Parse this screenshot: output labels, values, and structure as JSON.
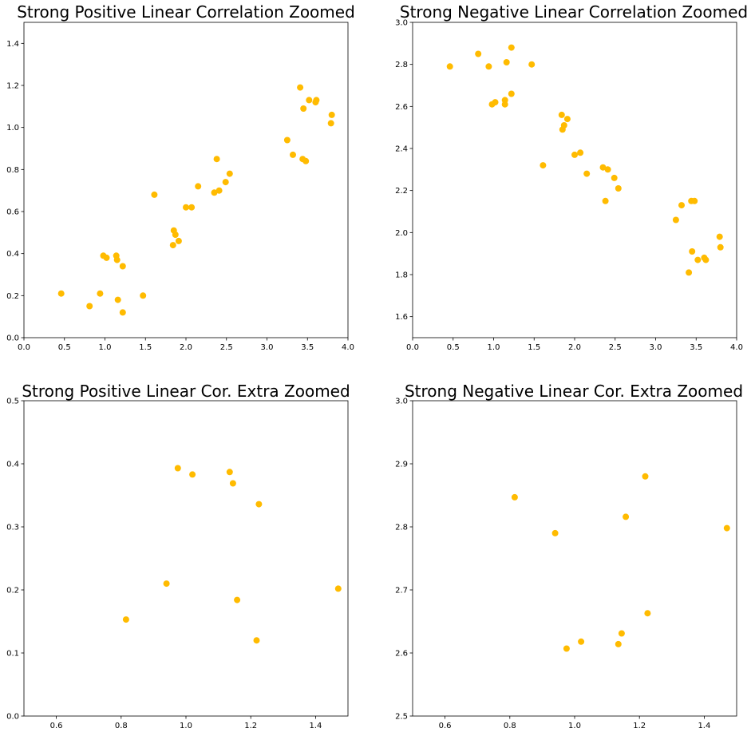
{
  "chart_data": [
    {
      "type": "scatter",
      "title": "Strong Positive Linear Correlation Zoomed",
      "xlabel": "",
      "ylabel": "",
      "xlim": [
        0,
        4.0
      ],
      "ylim": [
        0,
        1.5
      ],
      "xticks": [
        0.0,
        0.5,
        1.0,
        1.5,
        2.0,
        2.5,
        3.0,
        3.5,
        4.0
      ],
      "xtick_labels": [
        "0.0",
        "0.5",
        "1.0",
        "1.5",
        "2.0",
        "2.5",
        "3.0",
        "3.5",
        "4.0"
      ],
      "yticks": [
        0.0,
        0.2,
        0.4,
        0.6,
        0.8,
        1.0,
        1.2,
        1.4
      ],
      "ytick_labels": [
        "0.0",
        "0.2",
        "0.4",
        "0.6",
        "0.8",
        "1.0",
        "1.2",
        "1.4"
      ],
      "grid": false,
      "color": "#ffbb00",
      "x": [
        0.46,
        0.81,
        0.94,
        0.98,
        1.02,
        1.14,
        1.15,
        1.16,
        1.22,
        1.22,
        1.47,
        1.61,
        1.84,
        1.85,
        1.87,
        1.91,
        2.0,
        2.07,
        2.15,
        2.35,
        2.38,
        2.41,
        2.49,
        2.54,
        3.25,
        3.32,
        3.41,
        3.44,
        3.45,
        3.48,
        3.52,
        3.6,
        3.61,
        3.79,
        3.8
      ],
      "y": [
        0.21,
        0.15,
        0.21,
        0.39,
        0.38,
        0.39,
        0.37,
        0.18,
        0.34,
        0.12,
        0.2,
        0.68,
        0.44,
        0.51,
        0.49,
        0.46,
        0.62,
        0.62,
        0.72,
        0.69,
        0.85,
        0.7,
        0.74,
        0.78,
        0.94,
        0.87,
        1.19,
        0.85,
        1.09,
        0.84,
        1.13,
        1.12,
        1.13,
        1.02,
        1.06
      ]
    },
    {
      "type": "scatter",
      "title": "Strong Negative Linear Correlation Zoomed",
      "xlabel": "",
      "ylabel": "",
      "xlim": [
        0,
        4.0
      ],
      "ylim": [
        1.5,
        3.0
      ],
      "xticks": [
        0.0,
        0.5,
        1.0,
        1.5,
        2.0,
        2.5,
        3.0,
        3.5,
        4.0
      ],
      "xtick_labels": [
        "0.0",
        "0.5",
        "1.0",
        "1.5",
        "2.0",
        "2.5",
        "3.0",
        "3.5",
        "4.0"
      ],
      "yticks": [
        1.6,
        1.8,
        2.0,
        2.2,
        2.4,
        2.6,
        2.8,
        3.0
      ],
      "ytick_labels": [
        "1.6",
        "1.8",
        "2.0",
        "2.2",
        "2.4",
        "2.6",
        "2.8",
        "3.0"
      ],
      "grid": false,
      "color": "#ffbb00",
      "x": [
        0.46,
        0.81,
        0.94,
        0.98,
        1.02,
        1.14,
        1.14,
        1.16,
        1.22,
        1.22,
        1.47,
        1.61,
        1.84,
        1.85,
        1.87,
        1.91,
        2.0,
        2.07,
        2.15,
        2.35,
        2.38,
        2.41,
        2.49,
        2.54,
        3.25,
        3.32,
        3.41,
        3.44,
        3.45,
        3.48,
        3.52,
        3.6,
        3.62,
        3.79,
        3.8
      ],
      "y": [
        2.79,
        2.85,
        2.79,
        2.61,
        2.62,
        2.61,
        2.63,
        2.81,
        2.66,
        2.88,
        2.8,
        2.32,
        2.56,
        2.49,
        2.51,
        2.54,
        2.37,
        2.38,
        2.28,
        2.31,
        2.15,
        2.3,
        2.26,
        2.21,
        2.06,
        2.13,
        1.81,
        2.15,
        1.91,
        2.15,
        1.87,
        1.88,
        1.87,
        1.98,
        1.93
      ]
    },
    {
      "type": "scatter",
      "title": "Strong Positive Linear Cor. Extra Zoomed",
      "xlabel": "",
      "ylabel": "",
      "xlim": [
        0.5,
        1.5
      ],
      "ylim": [
        0.0,
        0.5
      ],
      "xticks": [
        0.6,
        0.8,
        1.0,
        1.2,
        1.4
      ],
      "xtick_labels": [
        "0.6",
        "0.8",
        "1.0",
        "1.2",
        "1.4"
      ],
      "yticks": [
        0.0,
        0.1,
        0.2,
        0.3,
        0.4,
        0.5
      ],
      "ytick_labels": [
        "0.0",
        "0.1",
        "0.2",
        "0.3",
        "0.4",
        "0.5"
      ],
      "grid": false,
      "color": "#ffbb00",
      "x": [
        0.815,
        0.94,
        0.975,
        1.02,
        1.135,
        1.145,
        1.158,
        1.218,
        1.225,
        1.47
      ],
      "y": [
        0.153,
        0.21,
        0.393,
        0.383,
        0.387,
        0.369,
        0.184,
        0.12,
        0.336,
        0.202
      ]
    },
    {
      "type": "scatter",
      "title": "Strong Negative Linear Cor. Extra Zoomed",
      "xlabel": "",
      "ylabel": "",
      "xlim": [
        0.5,
        1.5
      ],
      "ylim": [
        2.5,
        3.0
      ],
      "xticks": [
        0.6,
        0.8,
        1.0,
        1.2,
        1.4
      ],
      "xtick_labels": [
        "0.6",
        "0.8",
        "1.0",
        "1.2",
        "1.4"
      ],
      "yticks": [
        2.5,
        2.6,
        2.7,
        2.8,
        2.9,
        3.0
      ],
      "ytick_labels": [
        "2.5",
        "2.6",
        "2.7",
        "2.8",
        "2.9",
        "3.0"
      ],
      "grid": false,
      "color": "#ffbb00",
      "x": [
        0.815,
        0.94,
        0.975,
        1.02,
        1.135,
        1.145,
        1.158,
        1.218,
        1.225,
        1.47
      ],
      "y": [
        2.847,
        2.79,
        2.607,
        2.618,
        2.614,
        2.631,
        2.816,
        2.88,
        2.663,
        2.798
      ]
    }
  ]
}
